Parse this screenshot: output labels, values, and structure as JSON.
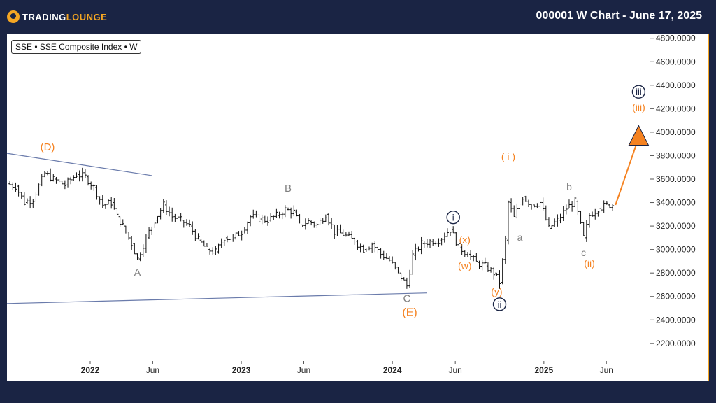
{
  "header": {
    "logo_text_a": "TRADING",
    "logo_text_b": "LOUNGE",
    "title": "000001 W Chart - June 17, 2025"
  },
  "legend_label": "SSE • SSE Composite Index • W",
  "colors": {
    "orange": "#f58220",
    "navy": "#1a2444",
    "gray": "#808080",
    "trendline": "#6a7bab"
  },
  "chart_data": {
    "type": "line",
    "yticks": [
      "4800.0000",
      "4600.0000",
      "4400.0000",
      "4200.0000",
      "4000.0000",
      "3800.0000",
      "3600.0000",
      "3400.0000",
      "3200.0000",
      "3000.0000",
      "2800.0000",
      "2600.0000",
      "2400.0000",
      "2200.0000"
    ],
    "ylim": [
      2050,
      4840
    ],
    "xlim": [
      "2021-06-14",
      "2025-09-15"
    ],
    "xticks": [
      {
        "label": "2022",
        "date": "2022-01-01",
        "bold": true
      },
      {
        "label": "Jun",
        "date": "2022-06-01",
        "bold": false
      },
      {
        "label": "2023",
        "date": "2023-01-01",
        "bold": true
      },
      {
        "label": "Jun",
        "date": "2023-06-01",
        "bold": false
      },
      {
        "label": "2024",
        "date": "2024-01-01",
        "bold": true
      },
      {
        "label": "Jun",
        "date": "2024-06-01",
        "bold": false
      },
      {
        "label": "2025",
        "date": "2025-01-01",
        "bold": true
      },
      {
        "label": "Jun",
        "date": "2025-06-01",
        "bold": false
      }
    ],
    "series": [
      {
        "values": [
          [
            "2021-06-14",
            3560
          ],
          [
            "2021-07-05",
            3540
          ],
          [
            "2021-07-26",
            3400
          ],
          [
            "2021-08-16",
            3430
          ],
          [
            "2021-09-13",
            3650
          ],
          [
            "2021-10-04",
            3600
          ],
          [
            "2021-11-01",
            3550
          ],
          [
            "2021-11-29",
            3640
          ],
          [
            "2021-12-20",
            3620
          ],
          [
            "2022-01-10",
            3530
          ],
          [
            "2022-01-31",
            3380
          ],
          [
            "2022-02-21",
            3400
          ],
          [
            "2022-03-07",
            3280
          ],
          [
            "2022-03-21",
            3200
          ],
          [
            "2022-04-11",
            3050
          ],
          [
            "2022-04-25",
            2920
          ],
          [
            "2022-05-16",
            3100
          ],
          [
            "2022-06-06",
            3250
          ],
          [
            "2022-06-27",
            3380
          ],
          [
            "2022-07-18",
            3280
          ],
          [
            "2022-08-08",
            3250
          ],
          [
            "2022-08-29",
            3200
          ],
          [
            "2022-09-19",
            3080
          ],
          [
            "2022-10-10",
            3000
          ],
          [
            "2022-10-31",
            2980
          ],
          [
            "2022-11-21",
            3100
          ],
          [
            "2022-12-12",
            3100
          ],
          [
            "2023-01-02",
            3150
          ],
          [
            "2023-01-23",
            3280
          ],
          [
            "2023-02-13",
            3260
          ],
          [
            "2023-03-06",
            3250
          ],
          [
            "2023-03-27",
            3290
          ],
          [
            "2023-04-17",
            3340
          ],
          [
            "2023-05-08",
            3320
          ],
          [
            "2023-05-22",
            3210
          ],
          [
            "2023-06-12",
            3240
          ],
          [
            "2023-07-03",
            3210
          ],
          [
            "2023-07-24",
            3300
          ],
          [
            "2023-08-14",
            3150
          ],
          [
            "2023-09-04",
            3130
          ],
          [
            "2023-10-02",
            3070
          ],
          [
            "2023-10-23",
            3000
          ],
          [
            "2023-11-13",
            3050
          ],
          [
            "2023-12-04",
            2960
          ],
          [
            "2023-12-25",
            2910
          ],
          [
            "2024-01-15",
            2800
          ],
          [
            "2024-02-05",
            2690
          ],
          [
            "2024-02-19",
            2950
          ],
          [
            "2024-03-11",
            3050
          ],
          [
            "2024-04-01",
            3070
          ],
          [
            "2024-04-22",
            3080
          ],
          [
            "2024-05-13",
            3150
          ],
          [
            "2024-05-20",
            3170
          ],
          [
            "2024-06-10",
            3020
          ],
          [
            "2024-07-01",
            2960
          ],
          [
            "2024-07-22",
            2890
          ],
          [
            "2024-08-12",
            2860
          ],
          [
            "2024-09-02",
            2800
          ],
          [
            "2024-09-16",
            2720
          ],
          [
            "2024-09-30",
            3080
          ],
          [
            "2024-10-07",
            3400
          ],
          [
            "2024-10-21",
            3270
          ],
          [
            "2024-11-11",
            3450
          ],
          [
            "2024-12-02",
            3380
          ],
          [
            "2024-12-23",
            3400
          ],
          [
            "2025-01-13",
            3180
          ],
          [
            "2025-02-03",
            3250
          ],
          [
            "2025-02-24",
            3350
          ],
          [
            "2025-03-17",
            3410
          ],
          [
            "2025-04-07",
            3100
          ],
          [
            "2025-04-21",
            3290
          ],
          [
            "2025-05-12",
            3350
          ],
          [
            "2025-06-02",
            3380
          ],
          [
            "2025-06-16",
            3380
          ]
        ]
      }
    ],
    "trendlines": [
      {
        "from": [
          "2021-06-14",
          3820
        ],
        "to": [
          "2022-05-30",
          3630
        ],
        "color": "#6a7bab"
      },
      {
        "from": [
          "2021-06-14",
          2540
        ],
        "to": [
          "2024-03-25",
          2630
        ],
        "color": "#6a7bab"
      }
    ],
    "projection": {
      "from": [
        "2025-06-23",
        3380
      ],
      "to": [
        "2025-08-18",
        4020
      ],
      "color": "#f58220"
    },
    "annotations": [
      {
        "text": "(D)",
        "date": "2021-09-20",
        "value": 3850,
        "color": "#f58220",
        "size": 15,
        "circled": false
      },
      {
        "text": "A",
        "date": "2022-04-25",
        "value": 2780,
        "color": "#808080",
        "size": 15,
        "circled": false
      },
      {
        "text": "B",
        "date": "2023-04-24",
        "value": 3500,
        "color": "#808080",
        "size": 15,
        "circled": false
      },
      {
        "text": "C",
        "date": "2024-02-05",
        "value": 2560,
        "color": "#808080",
        "size": 15,
        "circled": false
      },
      {
        "text": "(E)",
        "date": "2024-02-12",
        "value": 2440,
        "color": "#f58220",
        "size": 16,
        "circled": false
      },
      {
        "text": "i",
        "date": "2024-05-27",
        "value": 3250,
        "color": "#1a2444",
        "size": 13,
        "circled": true
      },
      {
        "text": "(x)",
        "date": "2024-06-24",
        "value": 3060,
        "color": "#f58220",
        "size": 14,
        "circled": false
      },
      {
        "text": "(w)",
        "date": "2024-06-24",
        "value": 2840,
        "color": "#f58220",
        "size": 14,
        "circled": false
      },
      {
        "text": "(y)",
        "date": "2024-09-09",
        "value": 2620,
        "color": "#f58220",
        "size": 14,
        "circled": false
      },
      {
        "text": "ii",
        "date": "2024-09-16",
        "value": 2510,
        "color": "#1a2444",
        "size": 13,
        "circled": true
      },
      {
        "text": "( i )",
        "date": "2024-10-07",
        "value": 3770,
        "color": "#f58220",
        "size": 14,
        "circled": false
      },
      {
        "text": "a",
        "date": "2024-11-04",
        "value": 3080,
        "color": "#808080",
        "size": 14,
        "circled": false
      },
      {
        "text": "b",
        "date": "2025-03-03",
        "value": 3510,
        "color": "#808080",
        "size": 14,
        "circled": false
      },
      {
        "text": "c",
        "date": "2025-04-07",
        "value": 2950,
        "color": "#808080",
        "size": 14,
        "circled": false
      },
      {
        "text": "(ii)",
        "date": "2025-04-21",
        "value": 2860,
        "color": "#f58220",
        "size": 14,
        "circled": false
      },
      {
        "text": "(iii)",
        "date": "2025-08-18",
        "value": 4190,
        "color": "#f58220",
        "size": 14,
        "circled": false
      },
      {
        "text": "iii",
        "date": "2025-08-18",
        "value": 4320,
        "color": "#1a2444",
        "size": 13,
        "circled": true
      }
    ]
  }
}
